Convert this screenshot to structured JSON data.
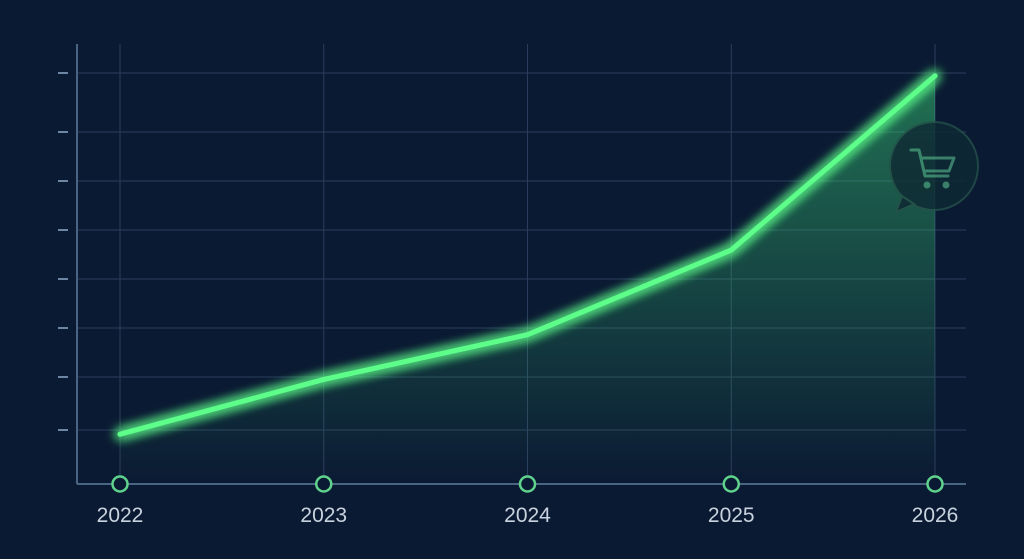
{
  "chart_data": {
    "type": "area",
    "x": [
      "2022",
      "2023",
      "2024",
      "2025",
      "2026"
    ],
    "series": [
      {
        "values": [
          1.0,
          2.1,
          3.0,
          4.7,
          8.2
        ]
      }
    ],
    "ylim": [
      0,
      9
    ],
    "grid": true,
    "y_tick_labels_shown": false,
    "icon": "shopping-cart-icon",
    "colors": {
      "background": "#0b1a33",
      "line": "#5dff8a",
      "grid": "#2a3d5c",
      "axis": "#4a6584",
      "marker": "#5fd28c",
      "icon": "#3e8b6f"
    }
  }
}
